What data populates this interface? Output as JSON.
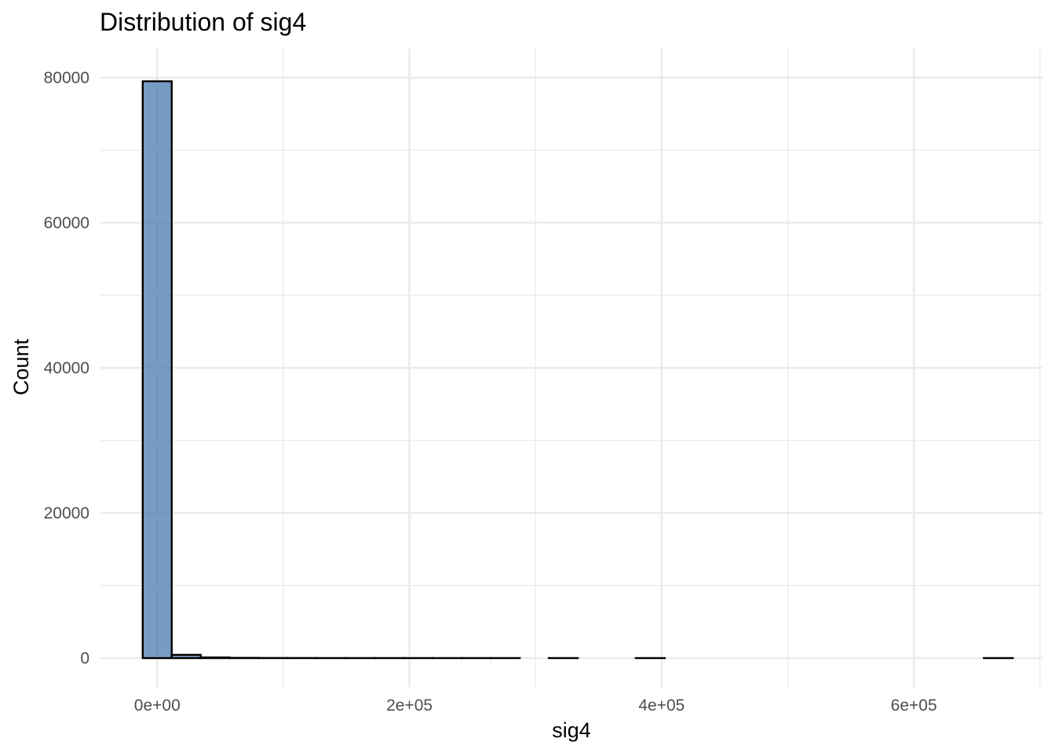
{
  "chart_data": {
    "type": "bar",
    "title": "Distribution of sig4",
    "xlabel": "sig4",
    "ylabel": "Count",
    "x_ticks": [
      {
        "value": 0,
        "label": "0e+00"
      },
      {
        "value": 200000,
        "label": "2e+05"
      },
      {
        "value": 400000,
        "label": "4e+05"
      },
      {
        "value": 600000,
        "label": "6e+05"
      }
    ],
    "y_ticks": [
      {
        "value": 0,
        "label": "0"
      },
      {
        "value": 20000,
        "label": "20000"
      },
      {
        "value": 40000,
        "label": "40000"
      },
      {
        "value": 60000,
        "label": "60000"
      },
      {
        "value": 80000,
        "label": "80000"
      }
    ],
    "xlim": [
      -45000,
      702000
    ],
    "ylim": [
      -4000,
      84000
    ],
    "bin_width": 23000,
    "bins": [
      {
        "x_start": -11500,
        "x_end": 11500,
        "count": 79500
      },
      {
        "x_start": 11500,
        "x_end": 34500,
        "count": 450
      },
      {
        "x_start": 34500,
        "x_end": 57500,
        "count": 90
      },
      {
        "x_start": 57500,
        "x_end": 80500,
        "count": 30
      },
      {
        "x_start": 80500,
        "x_end": 103500,
        "count": 15
      },
      {
        "x_start": 103500,
        "x_end": 126500,
        "count": 8
      },
      {
        "x_start": 126500,
        "x_end": 149500,
        "count": 5
      },
      {
        "x_start": 149500,
        "x_end": 172500,
        "count": 3
      },
      {
        "x_start": 172500,
        "x_end": 195500,
        "count": 2
      },
      {
        "x_start": 195500,
        "x_end": 218500,
        "count": 2
      },
      {
        "x_start": 218500,
        "x_end": 241500,
        "count": 1
      },
      {
        "x_start": 241500,
        "x_end": 264500,
        "count": 1
      },
      {
        "x_start": 264500,
        "x_end": 287500,
        "count": 1
      },
      {
        "x_start": 287500,
        "x_end": 310500,
        "count": 0
      },
      {
        "x_start": 310500,
        "x_end": 333500,
        "count": 1
      },
      {
        "x_start": 333500,
        "x_end": 356500,
        "count": 0
      },
      {
        "x_start": 356500,
        "x_end": 379500,
        "count": 0
      },
      {
        "x_start": 379500,
        "x_end": 402500,
        "count": 1
      },
      {
        "x_start": 402500,
        "x_end": 425500,
        "count": 0
      },
      {
        "x_start": 425500,
        "x_end": 448500,
        "count": 0
      },
      {
        "x_start": 448500,
        "x_end": 471500,
        "count": 0
      },
      {
        "x_start": 471500,
        "x_end": 494500,
        "count": 0
      },
      {
        "x_start": 494500,
        "x_end": 517500,
        "count": 0
      },
      {
        "x_start": 517500,
        "x_end": 540500,
        "count": 0
      },
      {
        "x_start": 540500,
        "x_end": 563500,
        "count": 0
      },
      {
        "x_start": 563500,
        "x_end": 586500,
        "count": 0
      },
      {
        "x_start": 586500,
        "x_end": 609500,
        "count": 0
      },
      {
        "x_start": 609500,
        "x_end": 632500,
        "count": 0
      },
      {
        "x_start": 632500,
        "x_end": 655500,
        "count": 0
      },
      {
        "x_start": 655500,
        "x_end": 678500,
        "count": 1
      }
    ],
    "grid": true,
    "legend": "none",
    "colors": {
      "bar_fill": "#4a7bb0",
      "bar_fill_opacity": 0.75,
      "bar_outline": "#000000",
      "grid": "#ebebeb",
      "tick_text": "#4d4d4d",
      "title_text": "#000000"
    }
  }
}
